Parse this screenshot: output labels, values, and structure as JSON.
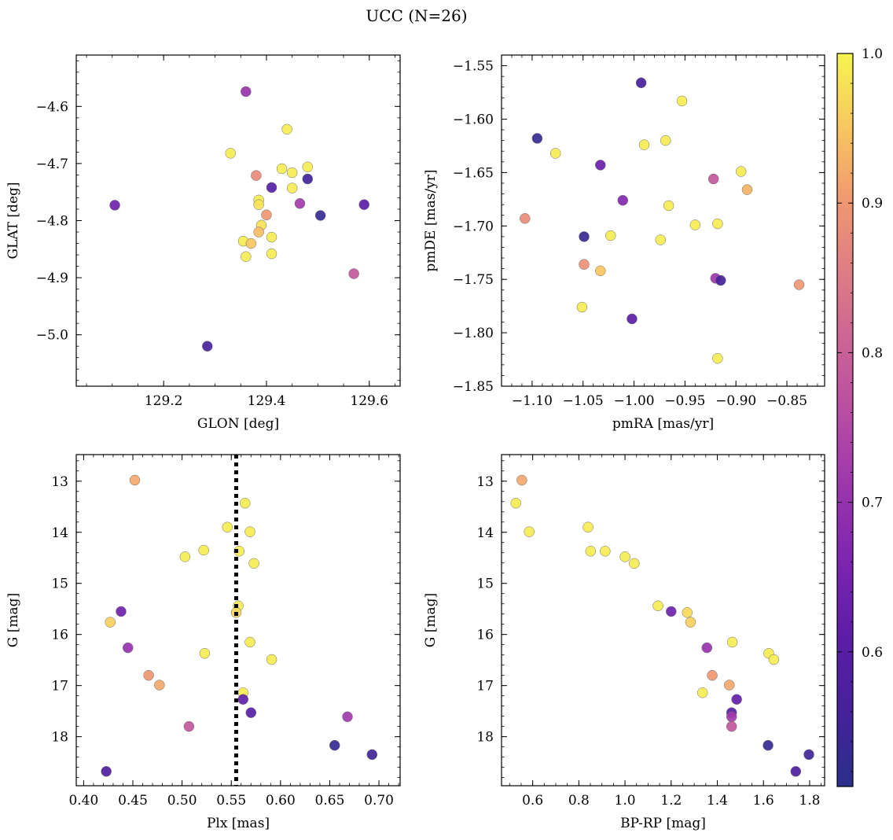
{
  "figure": {
    "title": "UCC (N=26)"
  },
  "colorbar": {
    "range": [
      0.51,
      1.0
    ],
    "ticks": [
      0.6,
      0.7,
      0.8,
      0.9,
      1.0
    ],
    "tick_labels": [
      "0.6",
      "0.7",
      "0.8",
      "0.9",
      "1.0"
    ],
    "colormap": "plasma"
  },
  "chart_data": [
    {
      "type": "scatter",
      "title": "",
      "xlabel": "GLON [deg]",
      "ylabel": "GLAT [deg]",
      "xlim": [
        129.03,
        129.66
      ],
      "ylim": [
        -5.09,
        -4.51
      ],
      "y_inverted": false,
      "xticks": [
        129.2,
        129.4,
        129.6
      ],
      "xtick_labels": [
        "129.2",
        "129.4",
        "129.6"
      ],
      "yticks": [
        -4.6,
        -4.7,
        -4.8,
        -4.9,
        -5.0
      ],
      "ytick_labels": [
        "−4.6",
        "−4.7",
        "−4.8",
        "−4.9",
        "−5.0"
      ],
      "points": [
        {
          "x": 129.36,
          "y": -4.574,
          "c": 0.7
        },
        {
          "x": 129.44,
          "y": -4.64,
          "c": 0.99
        },
        {
          "x": 129.33,
          "y": -4.682,
          "c": 0.99
        },
        {
          "x": 129.43,
          "y": -4.709,
          "c": 0.99
        },
        {
          "x": 129.48,
          "y": -4.706,
          "c": 0.99
        },
        {
          "x": 129.45,
          "y": -4.716,
          "c": 0.99
        },
        {
          "x": 129.38,
          "y": -4.721,
          "c": 0.88
        },
        {
          "x": 129.48,
          "y": -4.727,
          "c": 0.55
        },
        {
          "x": 129.41,
          "y": -4.742,
          "c": 0.6
        },
        {
          "x": 129.45,
          "y": -4.743,
          "c": 0.99
        },
        {
          "x": 129.385,
          "y": -4.764,
          "c": 0.99
        },
        {
          "x": 129.465,
          "y": -4.77,
          "c": 0.72
        },
        {
          "x": 129.385,
          "y": -4.772,
          "c": 0.98
        },
        {
          "x": 129.105,
          "y": -4.773,
          "c": 0.64
        },
        {
          "x": 129.59,
          "y": -4.772,
          "c": 0.61
        },
        {
          "x": 129.4,
          "y": -4.79,
          "c": 0.9
        },
        {
          "x": 129.505,
          "y": -4.791,
          "c": 0.53
        },
        {
          "x": 129.39,
          "y": -4.808,
          "c": 0.98
        },
        {
          "x": 129.385,
          "y": -4.82,
          "c": 0.94
        },
        {
          "x": 129.41,
          "y": -4.829,
          "c": 0.99
        },
        {
          "x": 129.355,
          "y": -4.836,
          "c": 0.99
        },
        {
          "x": 129.37,
          "y": -4.84,
          "c": 0.95
        },
        {
          "x": 129.41,
          "y": -4.858,
          "c": 0.99
        },
        {
          "x": 129.36,
          "y": -4.863,
          "c": 0.99
        },
        {
          "x": 129.57,
          "y": -4.893,
          "c": 0.78
        },
        {
          "x": 129.285,
          "y": -5.02,
          "c": 0.57
        }
      ]
    },
    {
      "type": "scatter",
      "title": "",
      "xlabel": "pmRA [mas/yr]",
      "ylabel": "pmDE [mas/yr]",
      "xlim": [
        -1.13,
        -0.813
      ],
      "ylim": [
        -1.85,
        -1.54
      ],
      "y_inverted": false,
      "xticks": [
        -1.1,
        -1.05,
        -1.0,
        -0.95,
        -0.9,
        -0.85
      ],
      "xtick_labels": [
        "−1.10",
        "−1.05",
        "−1.00",
        "−0.95",
        "−0.90",
        "−0.85"
      ],
      "yticks": [
        -1.55,
        -1.6,
        -1.65,
        -1.7,
        -1.75,
        -1.8,
        -1.85
      ],
      "ytick_labels": [
        "−1.55",
        "−1.60",
        "−1.65",
        "−1.70",
        "−1.75",
        "−1.80",
        "−1.85"
      ],
      "points": [
        {
          "x": -0.993,
          "y": -1.566,
          "c": 0.57
        },
        {
          "x": -0.953,
          "y": -1.583,
          "c": 0.99
        },
        {
          "x": -1.095,
          "y": -1.618,
          "c": 0.53
        },
        {
          "x": -1.077,
          "y": -1.632,
          "c": 0.99
        },
        {
          "x": -0.969,
          "y": -1.62,
          "c": 0.99
        },
        {
          "x": -0.99,
          "y": -1.624,
          "c": 0.99
        },
        {
          "x": -1.033,
          "y": -1.643,
          "c": 0.63
        },
        {
          "x": -0.895,
          "y": -1.649,
          "c": 0.99
        },
        {
          "x": -0.922,
          "y": -1.656,
          "c": 0.78
        },
        {
          "x": -0.889,
          "y": -1.666,
          "c": 0.93
        },
        {
          "x": -1.011,
          "y": -1.676,
          "c": 0.67
        },
        {
          "x": -0.966,
          "y": -1.681,
          "c": 0.99
        },
        {
          "x": -1.107,
          "y": -1.693,
          "c": 0.88
        },
        {
          "x": -0.94,
          "y": -1.699,
          "c": 0.99
        },
        {
          "x": -0.918,
          "y": -1.698,
          "c": 0.99
        },
        {
          "x": -1.049,
          "y": -1.71,
          "c": 0.54
        },
        {
          "x": -1.023,
          "y": -1.709,
          "c": 0.99
        },
        {
          "x": -0.974,
          "y": -1.713,
          "c": 0.99
        },
        {
          "x": -1.049,
          "y": -1.736,
          "c": 0.89
        },
        {
          "x": -1.033,
          "y": -1.742,
          "c": 0.95
        },
        {
          "x": -0.92,
          "y": -1.749,
          "c": 0.71
        },
        {
          "x": -0.915,
          "y": -1.751,
          "c": 0.56
        },
        {
          "x": -0.838,
          "y": -1.755,
          "c": 0.9
        },
        {
          "x": -1.051,
          "y": -1.776,
          "c": 0.99
        },
        {
          "x": -1.002,
          "y": -1.787,
          "c": 0.61
        },
        {
          "x": -0.918,
          "y": -1.824,
          "c": 0.99
        }
      ]
    },
    {
      "type": "scatter",
      "title": "",
      "xlabel": "Plx [mas]",
      "ylabel": "G [mag]",
      "xlim": [
        0.3925,
        0.7215
      ],
      "ylim": [
        18.96,
        12.48
      ],
      "y_inverted": true,
      "xticks": [
        0.4,
        0.45,
        0.5,
        0.55,
        0.6,
        0.65,
        0.7
      ],
      "xtick_labels": [
        "0.40",
        "0.45",
        "0.50",
        "0.55",
        "0.60",
        "0.65",
        "0.70"
      ],
      "yticks": [
        13,
        14,
        15,
        16,
        17,
        18
      ],
      "ytick_labels": [
        "13",
        "14",
        "15",
        "16",
        "17",
        "18"
      ],
      "vline": {
        "x": 0.555,
        "style": "dotted"
      },
      "points": [
        {
          "x": 0.452,
          "y": 12.98,
          "c": 0.92
        },
        {
          "x": 0.564,
          "y": 13.43,
          "c": 0.99
        },
        {
          "x": 0.546,
          "y": 13.9,
          "c": 0.99
        },
        {
          "x": 0.569,
          "y": 13.99,
          "c": 0.99
        },
        {
          "x": 0.522,
          "y": 14.35,
          "c": 0.99
        },
        {
          "x": 0.558,
          "y": 14.37,
          "c": 0.99
        },
        {
          "x": 0.503,
          "y": 14.48,
          "c": 0.99
        },
        {
          "x": 0.573,
          "y": 14.61,
          "c": 0.99
        },
        {
          "x": 0.557,
          "y": 15.44,
          "c": 0.99
        },
        {
          "x": 0.555,
          "y": 15.57,
          "c": 0.97
        },
        {
          "x": 0.438,
          "y": 15.55,
          "c": 0.64
        },
        {
          "x": 0.427,
          "y": 15.76,
          "c": 0.96
        },
        {
          "x": 0.569,
          "y": 16.15,
          "c": 0.99
        },
        {
          "x": 0.445,
          "y": 16.26,
          "c": 0.7
        },
        {
          "x": 0.523,
          "y": 16.37,
          "c": 0.99
        },
        {
          "x": 0.591,
          "y": 16.49,
          "c": 0.99
        },
        {
          "x": 0.466,
          "y": 16.8,
          "c": 0.9
        },
        {
          "x": 0.477,
          "y": 16.99,
          "c": 0.92
        },
        {
          "x": 0.562,
          "y": 17.14,
          "c": 0.99
        },
        {
          "x": 0.562,
          "y": 17.27,
          "c": 0.62
        },
        {
          "x": 0.57,
          "y": 17.53,
          "c": 0.6
        },
        {
          "x": 0.668,
          "y": 17.61,
          "c": 0.72
        },
        {
          "x": 0.507,
          "y": 17.8,
          "c": 0.78
        },
        {
          "x": 0.655,
          "y": 18.17,
          "c": 0.53
        },
        {
          "x": 0.693,
          "y": 18.35,
          "c": 0.55
        },
        {
          "x": 0.423,
          "y": 18.68,
          "c": 0.58
        }
      ]
    },
    {
      "type": "scatter",
      "title": "",
      "xlabel": "BP-RP [mag]",
      "ylabel": "G [mag]",
      "xlim": [
        0.465,
        1.865
      ],
      "ylim": [
        18.96,
        12.48
      ],
      "y_inverted": true,
      "xticks": [
        0.6,
        0.8,
        1.0,
        1.2,
        1.4,
        1.6,
        1.8
      ],
      "xtick_labels": [
        "0.6",
        "0.8",
        "1.0",
        "1.2",
        "1.4",
        "1.6",
        "1.8"
      ],
      "yticks": [
        13,
        14,
        15,
        16,
        17,
        18
      ],
      "ytick_labels": [
        "13",
        "14",
        "15",
        "16",
        "17",
        "18"
      ],
      "points": [
        {
          "x": 0.553,
          "y": 12.98,
          "c": 0.92
        },
        {
          "x": 0.527,
          "y": 13.43,
          "c": 0.99
        },
        {
          "x": 0.585,
          "y": 13.99,
          "c": 0.99
        },
        {
          "x": 0.84,
          "y": 13.9,
          "c": 0.99
        },
        {
          "x": 0.851,
          "y": 14.37,
          "c": 0.99
        },
        {
          "x": 0.914,
          "y": 14.37,
          "c": 0.99
        },
        {
          "x": 1.0,
          "y": 14.48,
          "c": 0.99
        },
        {
          "x": 1.04,
          "y": 14.61,
          "c": 0.99
        },
        {
          "x": 1.143,
          "y": 15.44,
          "c": 0.99
        },
        {
          "x": 1.2,
          "y": 15.55,
          "c": 0.64
        },
        {
          "x": 1.27,
          "y": 15.57,
          "c": 0.97
        },
        {
          "x": 1.284,
          "y": 15.76,
          "c": 0.96
        },
        {
          "x": 1.465,
          "y": 16.15,
          "c": 0.99
        },
        {
          "x": 1.355,
          "y": 16.26,
          "c": 0.7
        },
        {
          "x": 1.623,
          "y": 16.37,
          "c": 0.99
        },
        {
          "x": 1.645,
          "y": 16.49,
          "c": 0.99
        },
        {
          "x": 1.378,
          "y": 16.8,
          "c": 0.9
        },
        {
          "x": 1.452,
          "y": 16.99,
          "c": 0.92
        },
        {
          "x": 1.336,
          "y": 17.14,
          "c": 0.99
        },
        {
          "x": 1.484,
          "y": 17.27,
          "c": 0.62
        },
        {
          "x": 1.462,
          "y": 17.53,
          "c": 0.6
        },
        {
          "x": 1.462,
          "y": 17.61,
          "c": 0.72
        },
        {
          "x": 1.462,
          "y": 17.8,
          "c": 0.78
        },
        {
          "x": 1.62,
          "y": 18.17,
          "c": 0.53
        },
        {
          "x": 1.797,
          "y": 18.35,
          "c": 0.55
        },
        {
          "x": 1.74,
          "y": 18.68,
          "c": 0.58
        }
      ]
    }
  ]
}
